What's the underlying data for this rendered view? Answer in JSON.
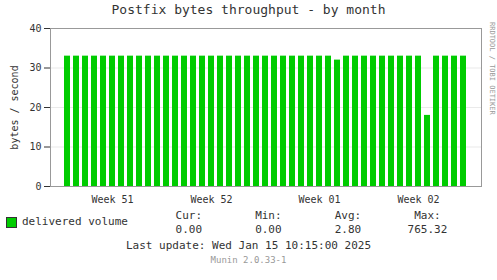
{
  "chart_data": {
    "type": "bar",
    "title": "Postfix bytes throughput - by month",
    "ylabel": "bytes / second",
    "categories": [
      null,
      null,
      null,
      null,
      null,
      "Week 51",
      null,
      null,
      null,
      null,
      null,
      null,
      null,
      null,
      null,
      null,
      "Week 52",
      null,
      null,
      null,
      null,
      null,
      null,
      null,
      null,
      null,
      null,
      null,
      "Week 01",
      null,
      null,
      null,
      null,
      null,
      null,
      null,
      null,
      null,
      null,
      "Week 02",
      null,
      null,
      null,
      null,
      null
    ],
    "series": [
      {
        "name": "delivered volume",
        "color": "#00cc00",
        "values": [
          33,
          33,
          33,
          33,
          33,
          33,
          33,
          33,
          33,
          33,
          33,
          33,
          33,
          33,
          33,
          33,
          33,
          33,
          33,
          33,
          33,
          33,
          33,
          33,
          33,
          33,
          33,
          33,
          33,
          33,
          32,
          33,
          33,
          33,
          33,
          33,
          33,
          33,
          33,
          33,
          18,
          33,
          33,
          33,
          33
        ]
      }
    ],
    "ylim": [
      0,
      40
    ],
    "yticks": [
      0,
      10,
      20,
      30,
      40
    ],
    "grid": true,
    "legend": "bottom",
    "annotations": [
      "Cur:",
      "Min:",
      "Avg:",
      "Max:",
      "0.00",
      "0.00",
      "2.80",
      "765.32",
      "Last update: Wed Jan 15 10:15:00 2025",
      "Munin 2.0.33-1",
      "RRDTOOL / TOBI OETIKER"
    ]
  }
}
